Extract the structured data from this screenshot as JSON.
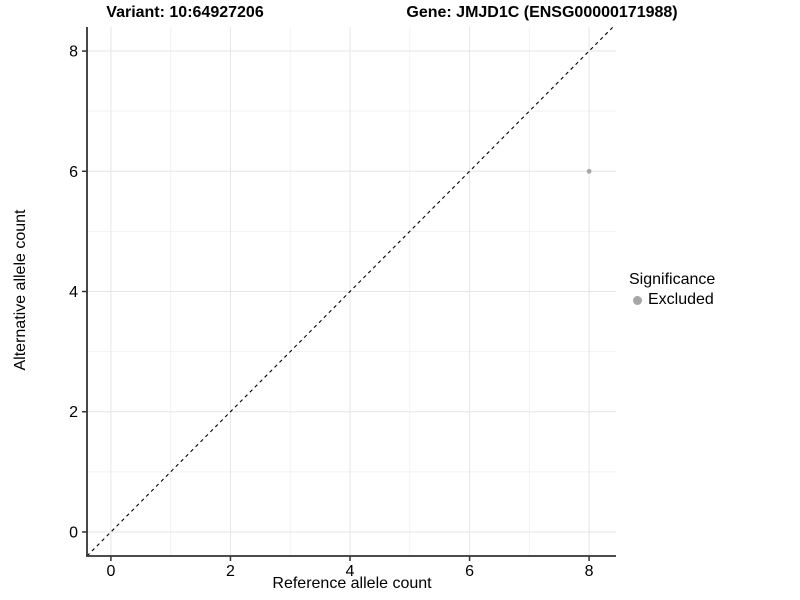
{
  "header": {
    "variant_title": "Variant: 10:64927206",
    "gene_title": "Gene: JMJD1C (ENSG00000171988)"
  },
  "chart_data": {
    "type": "scatter",
    "title_left": "Variant: 10:64927206",
    "title_right": "Gene: JMJD1C (ENSG00000171988)",
    "xlabel": "Reference allele count",
    "ylabel": "Alternative allele count",
    "xlim": [
      -0.4,
      8.45
    ],
    "ylim": [
      -0.4,
      8.4
    ],
    "x_ticks": [
      0,
      2,
      4,
      6,
      8
    ],
    "y_ticks": [
      0,
      2,
      4,
      6,
      8
    ],
    "x_minor_ticks": [
      1,
      3,
      5,
      7
    ],
    "y_minor_ticks": [
      1,
      3,
      5,
      7
    ],
    "grid": "major and minor gridlines on white panel",
    "series": [
      {
        "name": "Excluded",
        "color": "#a6a6a6",
        "points": [
          {
            "x": 8,
            "y": 6
          }
        ]
      }
    ],
    "reference_line": {
      "description": "identity line y = x",
      "style": "dashed",
      "color": "#000000",
      "from": [
        -0.4,
        -0.4
      ],
      "to": [
        8.4,
        8.4
      ]
    },
    "legend": {
      "position": "right",
      "title": "Significance",
      "entries": [
        {
          "label": "Excluded",
          "color": "#a6a6a6"
        }
      ]
    }
  },
  "colors": {
    "background": "#ffffff",
    "grid_major": "#e6e6e6",
    "grid_minor": "#f2f2f2",
    "axis_line": "#333333",
    "tick_mark": "#333333",
    "text": "#000000"
  }
}
